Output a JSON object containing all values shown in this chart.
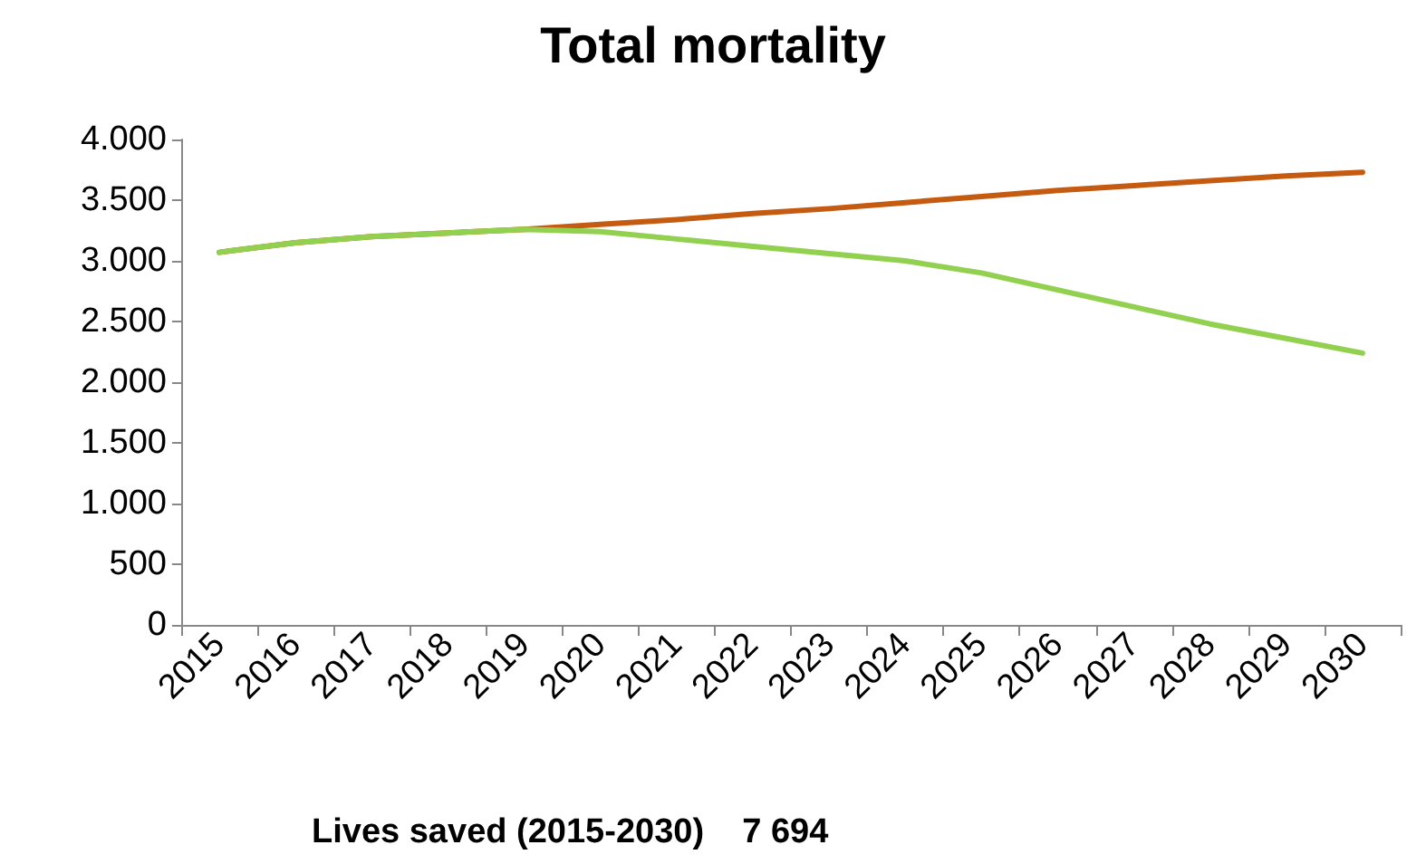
{
  "chart_data": {
    "type": "line",
    "title": "Total mortality",
    "categories": [
      "2015",
      "2016",
      "2017",
      "2018",
      "2019",
      "2020",
      "2021",
      "2022",
      "2023",
      "2024",
      "2025",
      "2026",
      "2027",
      "2028",
      "2029",
      "2030"
    ],
    "series": [
      {
        "color": "#c55a11",
        "values": [
          3070,
          3150,
          3200,
          3230,
          3260,
          3300,
          3340,
          3390,
          3430,
          3480,
          3530,
          3580,
          3620,
          3660,
          3700,
          3730
        ]
      },
      {
        "color": "#92d050",
        "values": [
          3070,
          3150,
          3200,
          3230,
          3260,
          3240,
          3180,
          3120,
          3060,
          3000,
          2900,
          2760,
          2620,
          2480,
          2360,
          2240
        ]
      }
    ],
    "ylim": [
      0,
      4000
    ],
    "yticks": [
      {
        "value": 0,
        "label": "0"
      },
      {
        "value": 500,
        "label": "500"
      },
      {
        "value": 1000,
        "label": "1.000"
      },
      {
        "value": 1500,
        "label": "1.500"
      },
      {
        "value": 2000,
        "label": "2.000"
      },
      {
        "value": 2500,
        "label": "2.500"
      },
      {
        "value": 3000,
        "label": "3.000"
      },
      {
        "value": 3500,
        "label": "3.500"
      },
      {
        "value": 4000,
        "label": "4.000"
      }
    ],
    "grid": false,
    "marker": "none",
    "line_style": "solid",
    "annotations": [
      "Lives saved (2015-2030)    7 694"
    ]
  }
}
